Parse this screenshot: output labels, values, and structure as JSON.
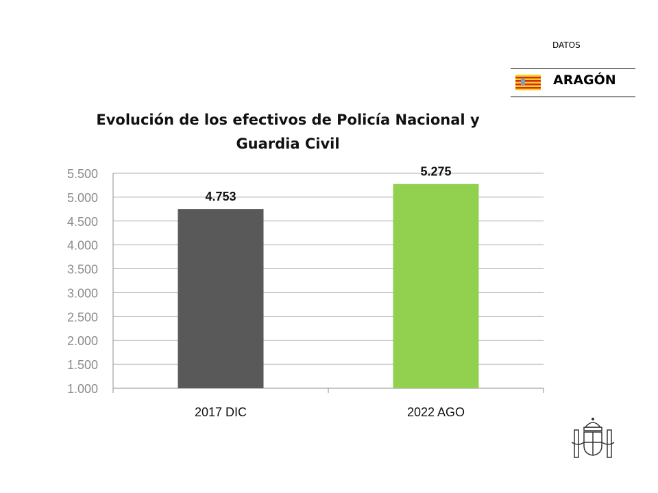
{
  "header": {
    "label": "DATOS",
    "region": "ARAGÓN",
    "flag_colors": [
      "#f7d11c",
      "#d52b1e"
    ]
  },
  "logo": {
    "name": "coat-of-arms-of-spain"
  },
  "chart_data": {
    "type": "bar",
    "title_lines": [
      "Evolución de los efectivos de Policía Nacional y",
      "Guardia Civil"
    ],
    "categories": [
      "2017 DIC",
      "2022 AGO"
    ],
    "values": [
      4753,
      5275
    ],
    "data_labels": [
      "4.753",
      "5.275"
    ],
    "colors": [
      "#595959",
      "#92d050"
    ],
    "ylim": [
      1000,
      5500
    ],
    "yticks": [
      1000,
      1500,
      2000,
      2500,
      3000,
      3500,
      4000,
      4500,
      5000,
      5500
    ],
    "ytick_labels": [
      "1.000",
      "1.500",
      "2.000",
      "2.500",
      "3.000",
      "3.500",
      "4.000",
      "4.500",
      "5.000",
      "5.500"
    ],
    "grid": true,
    "xlabel": "",
    "ylabel": ""
  }
}
